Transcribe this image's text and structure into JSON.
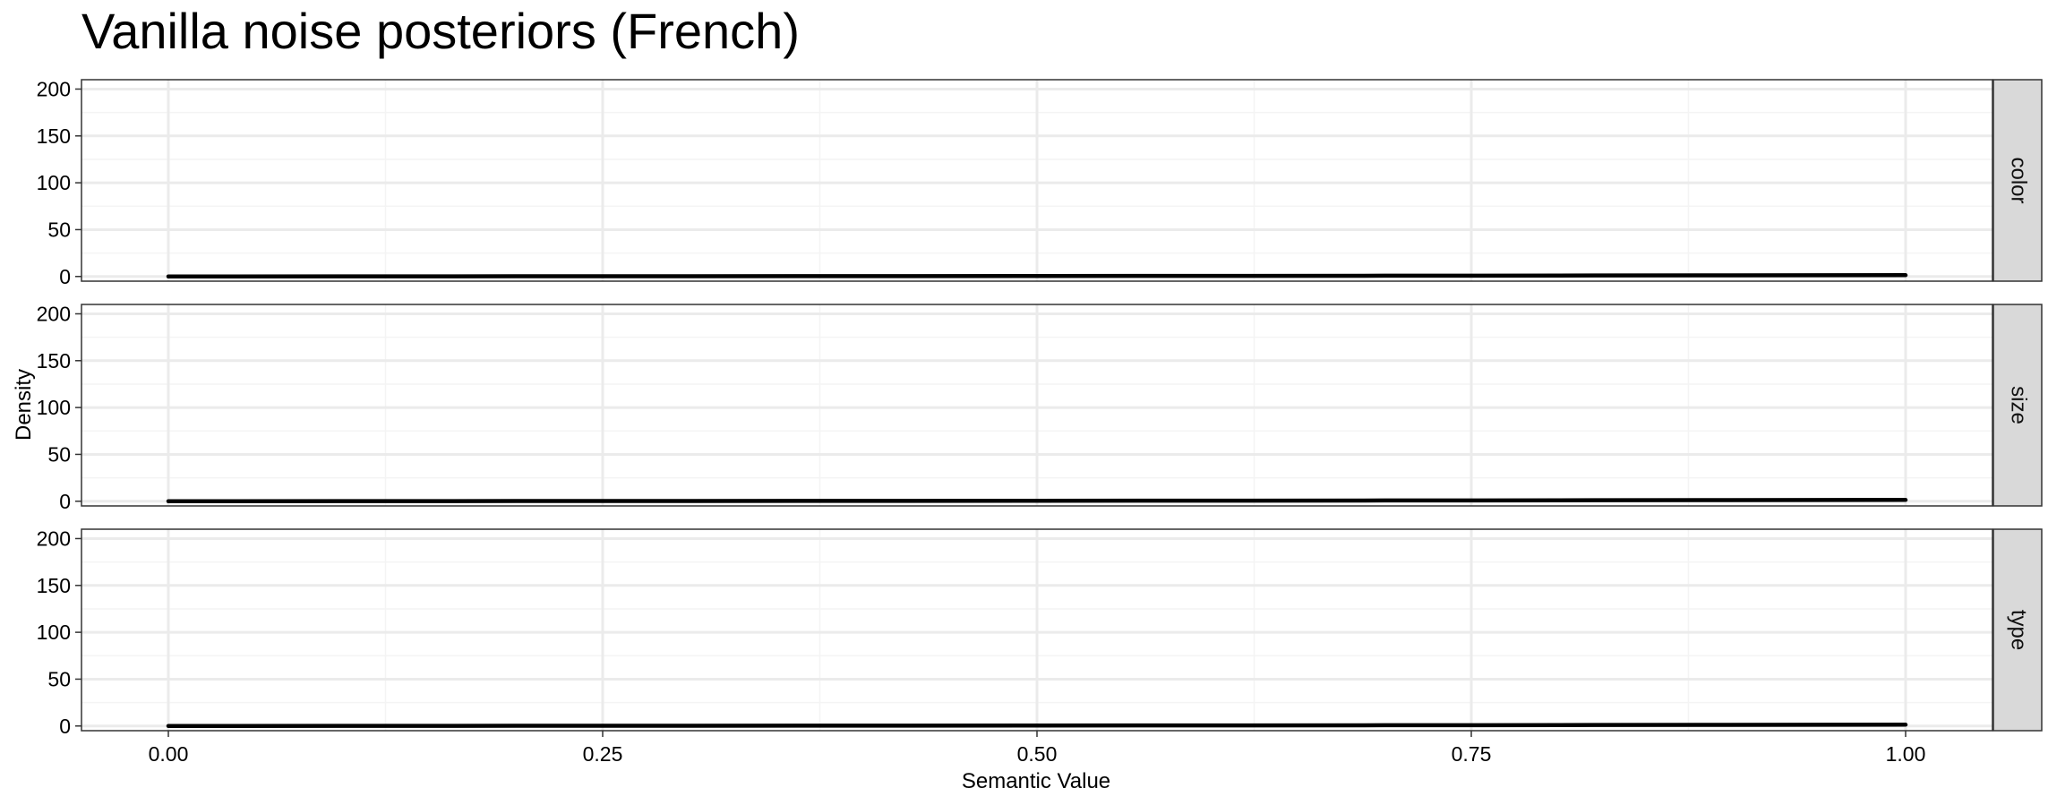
{
  "chart_data": {
    "type": "line",
    "title": "Vanilla noise posteriors (French)",
    "xlabel": "Semantic Value",
    "ylabel": "Density",
    "xlim": [
      -0.05,
      1.05
    ],
    "ylim": [
      -5,
      210
    ],
    "x_ticks": [
      0.0,
      0.25,
      0.5,
      0.75,
      1.0
    ],
    "x_tick_labels": [
      "0.00",
      "0.25",
      "0.50",
      "0.75",
      "1.00"
    ],
    "y_ticks": [
      0,
      50,
      100,
      150,
      200
    ],
    "y_tick_labels": [
      "0",
      "50",
      "100",
      "150",
      "200"
    ],
    "grid": true,
    "facets": [
      {
        "label": "color",
        "x": [
          0.0,
          0.1,
          0.2,
          0.3,
          0.4,
          0.5,
          0.6,
          0.7,
          0.8,
          0.9,
          1.0
        ],
        "y": [
          0.0,
          0.1,
          0.2,
          0.3,
          0.4,
          0.5,
          0.6,
          0.8,
          1.0,
          1.2,
          1.4
        ]
      },
      {
        "label": "size",
        "x": [
          0.0,
          0.1,
          0.2,
          0.3,
          0.4,
          0.5,
          0.6,
          0.7,
          0.8,
          0.9,
          1.0
        ],
        "y": [
          0.0,
          0.1,
          0.2,
          0.3,
          0.4,
          0.5,
          0.6,
          0.8,
          1.0,
          1.2,
          1.4
        ]
      },
      {
        "label": "type",
        "x": [
          0.0,
          0.1,
          0.2,
          0.3,
          0.4,
          0.5,
          0.6,
          0.7,
          0.8,
          0.9,
          1.0
        ],
        "y": [
          0.0,
          0.1,
          0.2,
          0.3,
          0.4,
          0.5,
          0.6,
          0.8,
          1.0,
          1.2,
          1.4
        ]
      }
    ]
  },
  "colors": {
    "background": "#ffffff",
    "panel_border": "#333333",
    "grid_major": "#ebebeb",
    "grid_minor": "#f4f4f4",
    "line": "#000000",
    "strip_fill": "#d9d9d9",
    "strip_border": "#333333",
    "text": "#000000"
  }
}
